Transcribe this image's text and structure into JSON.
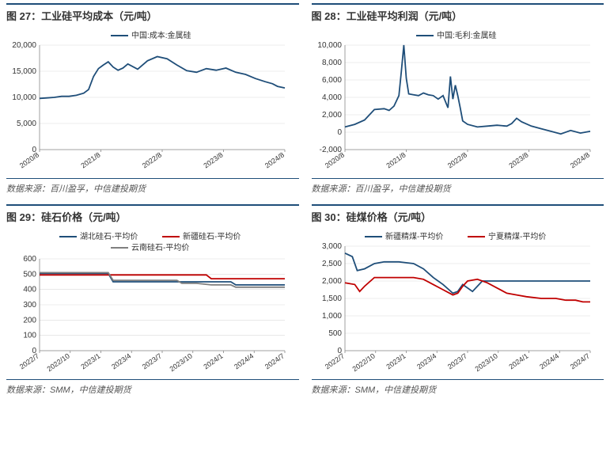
{
  "colors": {
    "navy": "#1f4e79",
    "red": "#c00000",
    "grid": "#d9d9d9",
    "axis": "#888888"
  },
  "charts": {
    "c27": {
      "title": "图 27：工业硅平均成本（元/吨）",
      "source": "数据来源：百川盈孚，中信建投期货",
      "legend": [
        {
          "label": "中国:成本:金属硅",
          "color": "#1f4e79"
        }
      ],
      "ylim": [
        0,
        20000
      ],
      "ytick_step": 5000,
      "x_ticks": [
        "2020/8",
        "2021/8",
        "2022/8",
        "2023/8",
        "2024/8"
      ],
      "series": [
        {
          "color": "#1f4e79",
          "points": [
            [
              0,
              9800
            ],
            [
              3,
              9900
            ],
            [
              6,
              10000
            ],
            [
              9,
              10200
            ],
            [
              12,
              10200
            ],
            [
              15,
              10400
            ],
            [
              18,
              10800
            ],
            [
              20,
              11500
            ],
            [
              22,
              14000
            ],
            [
              24,
              15500
            ],
            [
              26,
              16200
            ],
            [
              28,
              16800
            ],
            [
              30,
              15800
            ],
            [
              32,
              15200
            ],
            [
              34,
              15600
            ],
            [
              36,
              16400
            ],
            [
              40,
              15400
            ],
            [
              44,
              17000
            ],
            [
              48,
              17800
            ],
            [
              52,
              17400
            ],
            [
              56,
              16200
            ],
            [
              60,
              15100
            ],
            [
              64,
              14800
            ],
            [
              68,
              15500
            ],
            [
              72,
              15200
            ],
            [
              76,
              15600
            ],
            [
              80,
              14800
            ],
            [
              84,
              14400
            ],
            [
              88,
              13600
            ],
            [
              92,
              13000
            ],
            [
              95,
              12600
            ],
            [
              97,
              12100
            ],
            [
              100,
              11800
            ]
          ]
        }
      ]
    },
    "c28": {
      "title": "图 28：工业硅平均利润（元/吨）",
      "source": "数据来源：百川盈孚，中信建投期货",
      "legend": [
        {
          "label": "中国:毛利:金属硅",
          "color": "#1f4e79"
        }
      ],
      "ylim": [
        -2000,
        10000
      ],
      "ytick_step": 2000,
      "x_ticks": [
        "2020/8",
        "2021/8",
        "2022/8",
        "2023/8",
        "2024/8"
      ],
      "series": [
        {
          "color": "#1f4e79",
          "points": [
            [
              0,
              600
            ],
            [
              4,
              900
            ],
            [
              8,
              1400
            ],
            [
              12,
              2600
            ],
            [
              16,
              2700
            ],
            [
              18,
              2500
            ],
            [
              20,
              3000
            ],
            [
              22,
              4200
            ],
            [
              23,
              7000
            ],
            [
              24,
              10000
            ],
            [
              25,
              6200
            ],
            [
              26,
              4400
            ],
            [
              28,
              4300
            ],
            [
              30,
              4200
            ],
            [
              32,
              4500
            ],
            [
              34,
              4300
            ],
            [
              36,
              4200
            ],
            [
              38,
              3800
            ],
            [
              40,
              4200
            ],
            [
              42,
              2800
            ],
            [
              43,
              6400
            ],
            [
              44,
              3800
            ],
            [
              45,
              5400
            ],
            [
              46,
              4200
            ],
            [
              47,
              2800
            ],
            [
              48,
              1300
            ],
            [
              50,
              900
            ],
            [
              54,
              600
            ],
            [
              58,
              700
            ],
            [
              62,
              800
            ],
            [
              66,
              700
            ],
            [
              68,
              1000
            ],
            [
              70,
              1600
            ],
            [
              72,
              1200
            ],
            [
              76,
              700
            ],
            [
              80,
              400
            ],
            [
              84,
              100
            ],
            [
              88,
              -200
            ],
            [
              92,
              200
            ],
            [
              96,
              -100
            ],
            [
              100,
              100
            ]
          ]
        }
      ]
    },
    "c29": {
      "title": "图 29：硅石价格（元/吨）",
      "source": "数据来源：SMM，中信建投期货",
      "legend": [
        {
          "label": "湖北硅石-平均价",
          "color": "#1f4e79"
        },
        {
          "label": "新疆硅石-平均价",
          "color": "#c00000"
        },
        {
          "label": "云南硅石-平均价",
          "color": "#7f7f7f"
        }
      ],
      "ylim": [
        0,
        600
      ],
      "ytick_step": 100,
      "x_ticks": [
        "2022/7",
        "2022/10",
        "2023/1",
        "2023/4",
        "2023/7",
        "2023/10",
        "2024/1",
        "2024/4",
        "2024/7"
      ],
      "series": [
        {
          "color": "#1f4e79",
          "points": [
            [
              0,
              505
            ],
            [
              12,
              505
            ],
            [
              24,
              505
            ],
            [
              28,
              505
            ],
            [
              30,
              450
            ],
            [
              36,
              450
            ],
            [
              44,
              450
            ],
            [
              48,
              450
            ],
            [
              58,
              450
            ],
            [
              60,
              450
            ],
            [
              70,
              450
            ],
            [
              78,
              450
            ],
            [
              80,
              430
            ],
            [
              88,
              430
            ],
            [
              95,
              430
            ],
            [
              100,
              430
            ]
          ]
        },
        {
          "color": "#c00000",
          "points": [
            [
              0,
              495
            ],
            [
              12,
              495
            ],
            [
              24,
              495
            ],
            [
              30,
              495
            ],
            [
              36,
              495
            ],
            [
              44,
              495
            ],
            [
              56,
              495
            ],
            [
              68,
              495
            ],
            [
              70,
              470
            ],
            [
              78,
              470
            ],
            [
              84,
              470
            ],
            [
              90,
              470
            ],
            [
              95,
              470
            ],
            [
              100,
              470
            ]
          ]
        },
        {
          "color": "#7f7f7f",
          "points": [
            [
              0,
              510
            ],
            [
              12,
              510
            ],
            [
              24,
              510
            ],
            [
              28,
              510
            ],
            [
              30,
              460
            ],
            [
              36,
              460
            ],
            [
              44,
              460
            ],
            [
              56,
              460
            ],
            [
              58,
              440
            ],
            [
              64,
              440
            ],
            [
              70,
              430
            ],
            [
              78,
              430
            ],
            [
              80,
              415
            ],
            [
              88,
              415
            ],
            [
              95,
              415
            ],
            [
              100,
              415
            ]
          ]
        }
      ]
    },
    "c30": {
      "title": "图 30：硅煤价格（元/吨）",
      "source": "数据来源：SMM，中信建投期货",
      "legend": [
        {
          "label": "新疆精煤-平均价",
          "color": "#1f4e79"
        },
        {
          "label": "宁夏精煤-平均价",
          "color": "#c00000"
        }
      ],
      "ylim": [
        0,
        3000
      ],
      "ytick_step": 500,
      "x_ticks": [
        "2022/7",
        "2022/10",
        "2023/1",
        "2023/4",
        "2023/7",
        "2023/10",
        "2024/1",
        "2024/4",
        "2024/7"
      ],
      "series": [
        {
          "color": "#1f4e79",
          "points": [
            [
              0,
              2800
            ],
            [
              3,
              2700
            ],
            [
              5,
              2300
            ],
            [
              8,
              2350
            ],
            [
              12,
              2500
            ],
            [
              16,
              2550
            ],
            [
              22,
              2550
            ],
            [
              28,
              2500
            ],
            [
              32,
              2350
            ],
            [
              36,
              2100
            ],
            [
              40,
              1900
            ],
            [
              44,
              1650
            ],
            [
              46,
              1700
            ],
            [
              48,
              1900
            ],
            [
              52,
              1700
            ],
            [
              56,
              2000
            ],
            [
              62,
              2000
            ],
            [
              70,
              2000
            ],
            [
              78,
              2000
            ],
            [
              86,
              2000
            ],
            [
              94,
              2000
            ],
            [
              100,
              2000
            ]
          ]
        },
        {
          "color": "#c00000",
          "points": [
            [
              0,
              1950
            ],
            [
              4,
              1900
            ],
            [
              6,
              1700
            ],
            [
              8,
              1850
            ],
            [
              12,
              2100
            ],
            [
              16,
              2100
            ],
            [
              22,
              2100
            ],
            [
              28,
              2100
            ],
            [
              32,
              2050
            ],
            [
              36,
              1900
            ],
            [
              40,
              1750
            ],
            [
              44,
              1600
            ],
            [
              46,
              1650
            ],
            [
              48,
              1850
            ],
            [
              50,
              2000
            ],
            [
              54,
              2050
            ],
            [
              58,
              1950
            ],
            [
              62,
              1800
            ],
            [
              66,
              1650
            ],
            [
              70,
              1600
            ],
            [
              74,
              1550
            ],
            [
              80,
              1500
            ],
            [
              86,
              1500
            ],
            [
              90,
              1450
            ],
            [
              94,
              1450
            ],
            [
              97,
              1400
            ],
            [
              100,
              1400
            ]
          ]
        }
      ]
    }
  }
}
